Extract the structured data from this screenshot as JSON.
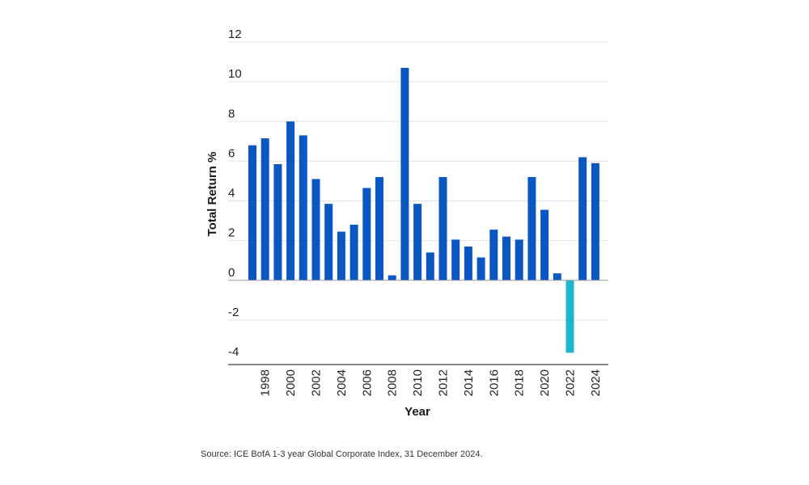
{
  "chart_data": {
    "type": "bar",
    "title": "",
    "xlabel": "Year",
    "ylabel": "Total Return %",
    "ylim": [
      -4,
      12
    ],
    "yticks": [
      "12",
      "10",
      "8",
      "6",
      "4",
      "2",
      "0",
      "-2",
      "-4"
    ],
    "ytick_values": [
      12,
      10,
      8,
      6,
      4,
      2,
      0,
      -2,
      -4
    ],
    "categories": [
      "1997",
      "1998",
      "1999",
      "2000",
      "2001",
      "2002",
      "2003",
      "2004",
      "2005",
      "2006",
      "2007",
      "2008",
      "2009",
      "2010",
      "2011",
      "2012",
      "2013",
      "2014",
      "2015",
      "2016",
      "2017",
      "2018",
      "2019",
      "2020",
      "2021",
      "2022",
      "2023",
      "2024"
    ],
    "xtick_labels": [
      "1998",
      "2000",
      "2002",
      "2004",
      "2006",
      "2008",
      "2010",
      "2012",
      "2014",
      "2016",
      "2018",
      "2020",
      "2022",
      "2024"
    ],
    "values": [
      6.8,
      7.15,
      5.85,
      8.0,
      7.3,
      5.1,
      3.85,
      2.45,
      2.8,
      4.65,
      5.2,
      0.25,
      10.7,
      3.85,
      1.4,
      5.2,
      2.05,
      1.7,
      1.15,
      2.55,
      2.2,
      2.05,
      5.2,
      3.55,
      0.35,
      -3.65,
      6.2,
      5.9
    ],
    "grid": true,
    "legend": "none",
    "colors": {
      "positive": "#0b57c2",
      "negative": "#1fb5cc",
      "axis": "#8a8a8a",
      "grid": "#e3e3e3"
    }
  },
  "source": "Source: ICE BofA 1-3 year Global Corporate Index, 31 December 2024."
}
